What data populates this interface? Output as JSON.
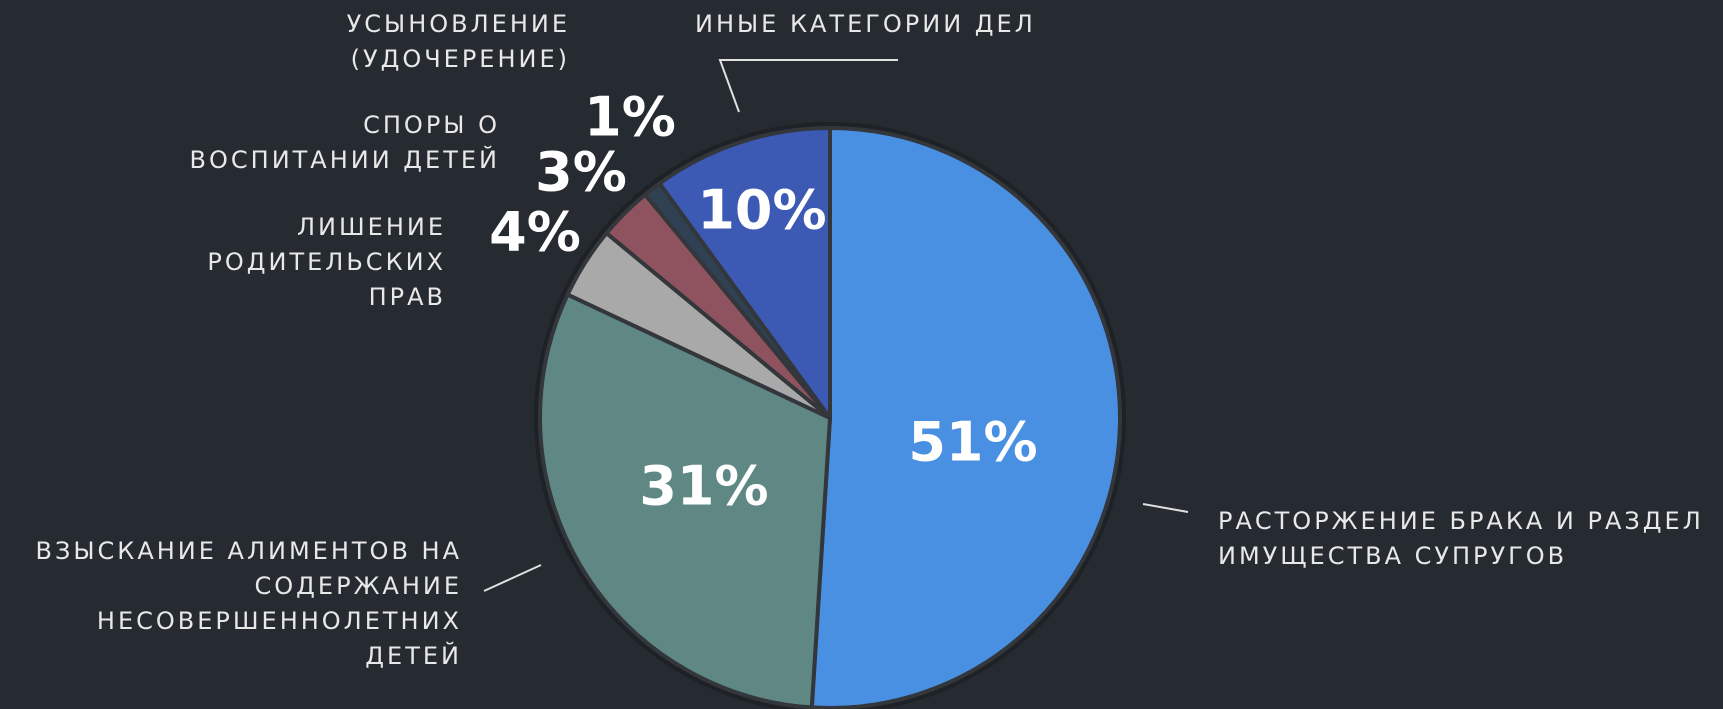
{
  "chart_data": {
    "type": "pie",
    "categories": [
      "РАСТОРЖЕНИЕ БРАКА И РАЗДЕЛ ИМУЩЕСТВА СУПРУГОВ",
      "ВЗЫСКАНИЕ АЛИМЕНТОВ НА СОДЕРЖАНИЕ НЕСОВЕРШЕННОЛЕТНИХ ДЕТЕЙ",
      "ЛИШЕНИЕ РОДИТЕЛЬСКИХ ПРАВ",
      "СПОРЫ О ВОСПИТАНИИ ДЕТЕЙ",
      "УСЫНОВЛЕНИЕ (УДОЧЕРЕНИЕ)",
      "ИНЫЕ КАТЕГОРИИ ДЕЛ"
    ],
    "values": [
      51,
      31,
      4,
      3,
      1,
      10
    ],
    "value_labels": [
      "51%",
      "31%",
      "4%",
      "3%",
      "1%",
      "10%"
    ],
    "colors": [
      "#4a90e2",
      "#5f8784",
      "#a9a9a9",
      "#8f5360",
      "#2f4152",
      "#3c59b4"
    ]
  }
}
